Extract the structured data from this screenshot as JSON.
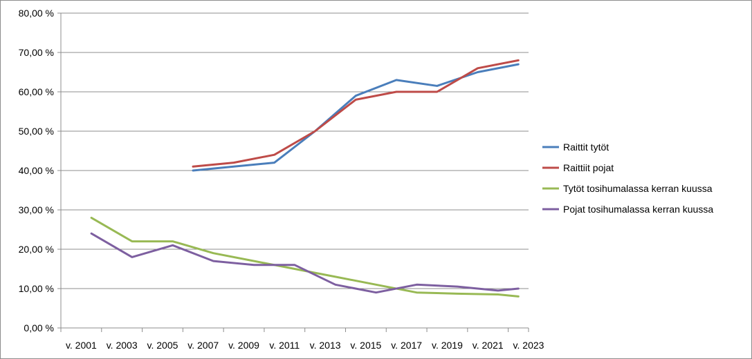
{
  "chart_data": {
    "type": "line",
    "title": "",
    "xlabel": "",
    "ylabel": "",
    "categories": [
      "v. 2001",
      "v. 2002",
      "v. 2003",
      "v. 2004",
      "v. 2005",
      "v. 2006",
      "v. 2007",
      "v. 2008",
      "v. 2009",
      "v. 2010",
      "v. 2011",
      "v. 2012",
      "v. 2013",
      "v. 2014",
      "v. 2015",
      "v. 2016",
      "v. 2017",
      "v. 2018",
      "v. 2019",
      "v. 2020",
      "v. 2021",
      "v. 2022",
      "v. 2023"
    ],
    "x_tick_labels": [
      "v. 2001",
      "v. 2003",
      "v. 2005",
      "v. 2007",
      "v. 2009",
      "v. 2011",
      "v. 2013",
      "v. 2015",
      "v. 2017",
      "v. 2019",
      "v. 2021",
      "v. 2023"
    ],
    "y_ticks": [
      "0,00 %",
      "10,00 %",
      "20,00 %",
      "30,00 %",
      "40,00 %",
      "50,00 %",
      "60,00 %",
      "70,00 %",
      "80,00 %"
    ],
    "ylim": [
      0,
      80
    ],
    "grid": true,
    "legend_position": "right",
    "series": [
      {
        "name": "Raittit tytöt",
        "color": "#4a7ebb",
        "points": [
          {
            "x": "v. 2007",
            "y": 40
          },
          {
            "x": "v. 2009",
            "y": 41
          },
          {
            "x": "v. 2011",
            "y": 42
          },
          {
            "x": "v. 2013",
            "y": 50
          },
          {
            "x": "v. 2015",
            "y": 59
          },
          {
            "x": "v. 2017",
            "y": 63
          },
          {
            "x": "v. 2019",
            "y": 61.5
          },
          {
            "x": "v. 2021",
            "y": 65
          },
          {
            "x": "v. 2023",
            "y": 67
          }
        ]
      },
      {
        "name": "Raittiit pojat",
        "color": "#be4b48",
        "points": [
          {
            "x": "v. 2007",
            "y": 41
          },
          {
            "x": "v. 2009",
            "y": 42
          },
          {
            "x": "v. 2011",
            "y": 44
          },
          {
            "x": "v. 2013",
            "y": 50
          },
          {
            "x": "v. 2015",
            "y": 58
          },
          {
            "x": "v. 2017",
            "y": 60
          },
          {
            "x": "v. 2019",
            "y": 60
          },
          {
            "x": "v. 2021",
            "y": 66
          },
          {
            "x": "v. 2023",
            "y": 68
          }
        ]
      },
      {
        "name": "Tytöt tosihumalassa kerran kuussa",
        "color": "#98b954",
        "points": [
          {
            "x": "v. 2002",
            "y": 28
          },
          {
            "x": "v. 2004",
            "y": 22
          },
          {
            "x": "v. 2006",
            "y": 22
          },
          {
            "x": "v. 2008",
            "y": 19
          },
          {
            "x": "v. 2010",
            "y": 17
          },
          {
            "x": "v. 2012",
            "y": 15
          },
          {
            "x": "v. 2014",
            "y": 13
          },
          {
            "x": "v. 2016",
            "y": 11
          },
          {
            "x": "v. 2018",
            "y": 9
          },
          {
            "x": "v. 2020",
            "y": 8.7
          },
          {
            "x": "v. 2022",
            "y": 8.5
          },
          {
            "x": "v. 2023",
            "y": 8
          }
        ]
      },
      {
        "name": "Pojat tosihumalassa kerran kuussa",
        "color": "#7d5fa0",
        "points": [
          {
            "x": "v. 2002",
            "y": 24
          },
          {
            "x": "v. 2004",
            "y": 18
          },
          {
            "x": "v. 2006",
            "y": 21
          },
          {
            "x": "v. 2008",
            "y": 17
          },
          {
            "x": "v. 2010",
            "y": 16
          },
          {
            "x": "v. 2012",
            "y": 16
          },
          {
            "x": "v. 2014",
            "y": 11
          },
          {
            "x": "v. 2016",
            "y": 9
          },
          {
            "x": "v. 2018",
            "y": 11
          },
          {
            "x": "v. 2020",
            "y": 10.5
          },
          {
            "x": "v. 2022",
            "y": 9.5
          },
          {
            "x": "v. 2023",
            "y": 10
          }
        ]
      }
    ]
  }
}
